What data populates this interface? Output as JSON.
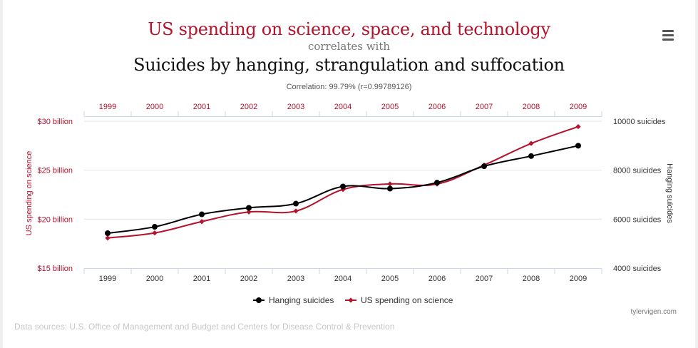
{
  "header": {
    "title_primary": "US spending on science, space, and technology",
    "title_connector": "correlates with",
    "title_secondary": "Suicides by hanging, strangulation and suffocation",
    "subtitle": "Correlation: 99.79% (r=0.99789126)"
  },
  "menu": {
    "icon": "hamburger-menu-icon"
  },
  "credit": "tylervigen.com",
  "footer": "Data sources: U.S. Office of Management and Budget and Centers for Disease Control & Prevention",
  "colors": {
    "spending": "#b5122b",
    "suicides": "#000000"
  },
  "chart_data": {
    "type": "line",
    "categories": [
      "1999",
      "2000",
      "2001",
      "2002",
      "2003",
      "2004",
      "2005",
      "2006",
      "2007",
      "2008",
      "2009"
    ],
    "series": [
      {
        "name": "Hanging suicides",
        "axis": "right",
        "marker": "circle",
        "values": [
          5427,
          5688,
          6198,
          6462,
          6635,
          7336,
          7248,
          7491,
          8161,
          8578,
          9000
        ]
      },
      {
        "name": "US spending on science",
        "axis": "left",
        "marker": "diamond",
        "values": [
          18.079,
          18.594,
          19.753,
          20.734,
          20.831,
          23.029,
          23.597,
          23.584,
          25.525,
          27.731,
          29.449
        ]
      }
    ],
    "left_axis": {
      "label": "US spending on science",
      "ylim": [
        15,
        30
      ],
      "ticks": [
        30,
        25,
        20,
        15
      ],
      "tick_labels": [
        "$30 billion",
        "$25 billion",
        "$20 billion",
        "$15 billion"
      ]
    },
    "right_axis": {
      "label": "Hanging suicides",
      "ylim": [
        4000,
        10000
      ],
      "ticks": [
        10000,
        8000,
        6000,
        4000
      ],
      "tick_labels": [
        "10000 suicides",
        "8000 suicides",
        "6000 suicides",
        "4000 suicides"
      ]
    },
    "grid": true,
    "legend": "bottom-center"
  }
}
